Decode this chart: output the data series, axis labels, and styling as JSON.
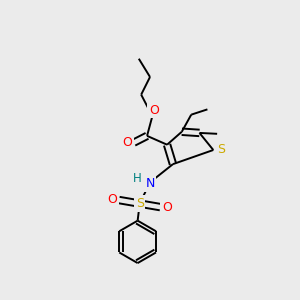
{
  "background_color": "#ebebeb",
  "bond_color": "#000000",
  "atom_colors": {
    "O": "#ff0000",
    "N": "#0000ff",
    "S_thio": "#ccaa00",
    "S_sulfonyl": "#ccaa00",
    "H": "#008080",
    "C": "#000000"
  },
  "figsize": [
    3.0,
    3.0
  ],
  "dpi": 100,
  "lw": 1.4
}
